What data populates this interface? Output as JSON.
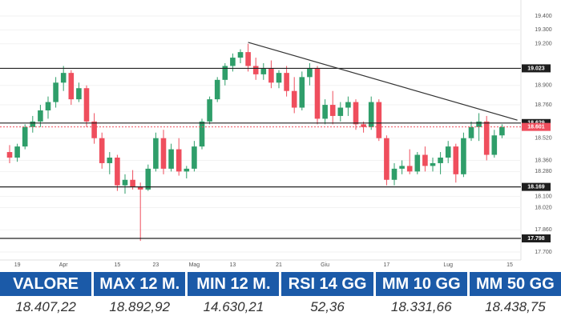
{
  "chart_data": {
    "type": "candlestick",
    "categories": [
      null,
      "19",
      null,
      null,
      null,
      null,
      null,
      "Apr",
      null,
      null,
      null,
      null,
      null,
      null,
      "15",
      null,
      null,
      null,
      null,
      "23",
      null,
      null,
      null,
      null,
      "Mag",
      null,
      null,
      null,
      null,
      "13",
      null,
      null,
      null,
      null,
      null,
      "21",
      null,
      null,
      null,
      null,
      null,
      "Giu",
      null,
      null,
      null,
      null,
      null,
      null,
      null,
      "17",
      null,
      null,
      null,
      null,
      null,
      null,
      null,
      "Lug",
      null,
      null,
      null,
      null,
      null,
      null,
      null,
      "15",
      null
    ],
    "open": [
      18420,
      18380,
      18460,
      18600,
      18640,
      18720,
      18780,
      18920,
      18990,
      18800,
      18880,
      18640,
      18520,
      18340,
      18380,
      18180,
      18220,
      18170,
      18150,
      18300,
      18520,
      18300,
      18440,
      18280,
      18300,
      18460,
      18640,
      18800,
      18940,
      19040,
      19100,
      19140,
      19040,
      18980,
      19020,
      18920,
      18990,
      18860,
      18740,
      18960,
      19020,
      18660,
      18760,
      18680,
      18740,
      18780,
      18620,
      18600,
      18780,
      18520,
      18220,
      18300,
      18320,
      18280,
      18400,
      18320,
      18340,
      18380,
      18460,
      18260,
      18520,
      18600,
      18640,
      18400,
      18540,
      null,
      null
    ],
    "high": [
      18470,
      18480,
      18620,
      18680,
      18760,
      18820,
      18960,
      19040,
      19010,
      18920,
      18900,
      18700,
      18560,
      18420,
      18400,
      18260,
      18290,
      18200,
      18330,
      18560,
      18580,
      18480,
      18520,
      18320,
      18500,
      18660,
      18820,
      18960,
      19060,
      19130,
      19160,
      19200,
      19100,
      19060,
      19080,
      19010,
      19040,
      18960,
      19000,
      19060,
      19040,
      18800,
      18860,
      18780,
      18820,
      18800,
      18640,
      18820,
      18800,
      18540,
      18340,
      18360,
      18440,
      18420,
      18460,
      18380,
      18420,
      18500,
      18480,
      18560,
      18640,
      18700,
      18680,
      18580,
      18620,
      null,
      null
    ],
    "low": [
      18340,
      18350,
      18440,
      18560,
      18600,
      18660,
      18740,
      18860,
      18760,
      18780,
      18600,
      18480,
      18300,
      18260,
      18140,
      18120,
      18150,
      17780,
      18140,
      18280,
      18260,
      18280,
      18250,
      18230,
      18280,
      18440,
      18620,
      18780,
      18900,
      19000,
      19060,
      19000,
      18940,
      18940,
      18880,
      18880,
      18820,
      18700,
      18720,
      18900,
      18620,
      18620,
      18620,
      18640,
      18680,
      18580,
      18560,
      18580,
      18500,
      18180,
      18180,
      18260,
      18260,
      18260,
      18280,
      18280,
      18260,
      18340,
      18200,
      18240,
      18500,
      18500,
      18360,
      18380,
      18520,
      null,
      null
    ],
    "close": [
      18380,
      18460,
      18600,
      18640,
      18720,
      18780,
      18920,
      18990,
      18800,
      18880,
      18640,
      18520,
      18340,
      18380,
      18180,
      18220,
      18170,
      18150,
      18300,
      18520,
      18300,
      18440,
      18280,
      18300,
      18460,
      18640,
      18800,
      18940,
      19040,
      19100,
      19140,
      19040,
      18980,
      19020,
      18920,
      18990,
      18860,
      18740,
      18960,
      19020,
      18660,
      18760,
      18680,
      18740,
      18780,
      18620,
      18600,
      18780,
      18520,
      18220,
      18300,
      18320,
      18280,
      18400,
      18320,
      18340,
      18380,
      18460,
      18260,
      18520,
      18600,
      18640,
      18400,
      18540,
      18600,
      null,
      null
    ],
    "up_color": "#2f9e6a",
    "down_color": "#ef4e5d",
    "ylim": [
      17700,
      19400
    ],
    "yticks": [
      {
        "value": 17700,
        "label": "17.700"
      },
      {
        "value": 17860,
        "label": "17.860"
      },
      {
        "value": 18020,
        "label": "18.020"
      },
      {
        "value": 18100,
        "label": "18.100"
      },
      {
        "value": 18280,
        "label": "18.280"
      },
      {
        "value": 18360,
        "label": "18.360"
      },
      {
        "value": 18520,
        "label": "18.520"
      },
      {
        "value": 18760,
        "label": "18.760"
      },
      {
        "value": 18900,
        "label": "18.900"
      },
      {
        "value": 19200,
        "label": "19.200"
      },
      {
        "value": 19300,
        "label": "19.300"
      },
      {
        "value": 19400,
        "label": "19.400"
      }
    ],
    "levels": [
      {
        "value": 19023,
        "label": "19.023"
      },
      {
        "value": 18629,
        "label": "18.629"
      },
      {
        "value": 18169,
        "label": "18.169"
      },
      {
        "value": 17798,
        "label": "17.798"
      }
    ],
    "last_price": {
      "value": 18601,
      "label": "18.601"
    },
    "trendline": {
      "x": [
        31,
        66
      ],
      "y": [
        19210,
        18650
      ]
    }
  },
  "table": {
    "headers": [
      "VALORE",
      "MAX 12 M.",
      "MIN 12 M.",
      "RSI 14 GG",
      "MM 10 GG",
      "MM 50 GG"
    ],
    "values": [
      "18.407,22",
      "18.892,92",
      "14.630,21",
      "52,36",
      "18.331,66",
      "18.438,75"
    ]
  }
}
